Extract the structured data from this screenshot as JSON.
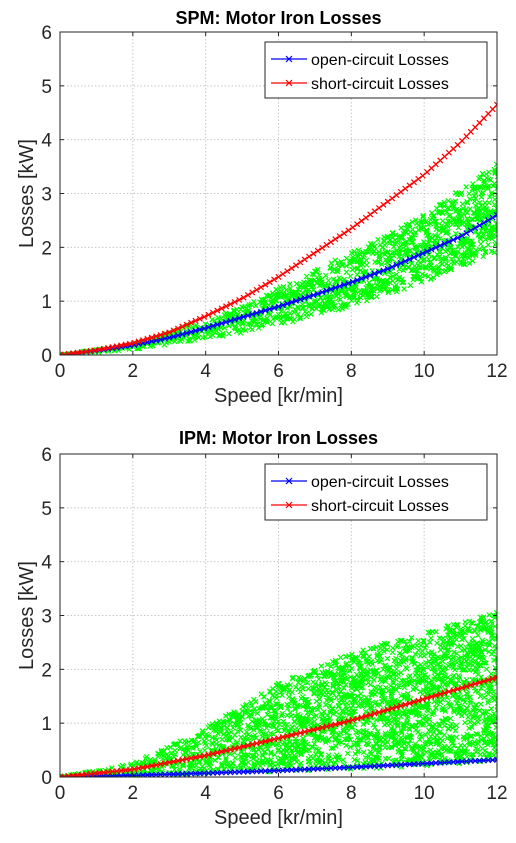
{
  "chart_data": [
    {
      "type": "scatter",
      "title": "SPM: Motor Iron Losses",
      "xlabel": "Speed [kr/min]",
      "ylabel": "Losses [kW]",
      "xlim": [
        0,
        12
      ],
      "ylim": [
        0,
        6
      ],
      "xticks": [
        "0",
        "2",
        "4",
        "6",
        "8",
        "10",
        "12"
      ],
      "yticks": [
        "0",
        "1",
        "2",
        "3",
        "4",
        "5",
        "6"
      ],
      "grid": true,
      "legend_position": "top-right",
      "legend": [
        "open-circuit Losses",
        "short-circuit Losses"
      ],
      "series": [
        {
          "name": "open-circuit Losses",
          "color": "#0000ff",
          "marker": "x",
          "x": [
            0,
            1,
            2,
            3,
            4,
            5,
            6,
            7,
            8,
            9,
            10,
            11,
            12
          ],
          "y": [
            0,
            0.08,
            0.18,
            0.32,
            0.5,
            0.7,
            0.9,
            1.12,
            1.35,
            1.6,
            1.9,
            2.2,
            2.6
          ]
        },
        {
          "name": "short-circuit Losses",
          "color": "#ff0000",
          "marker": "x",
          "x": [
            0,
            1,
            2,
            3,
            4,
            5,
            6,
            7,
            8,
            9,
            10,
            11,
            12
          ],
          "y": [
            0,
            0.09,
            0.22,
            0.42,
            0.72,
            1.05,
            1.45,
            1.9,
            2.35,
            2.85,
            3.35,
            3.95,
            4.65
          ]
        },
        {
          "color": "#00ff00",
          "marker": "x",
          "style": "cloud",
          "x": [
            0,
            2,
            3.5,
            4,
            5,
            6,
            8,
            10,
            12
          ],
          "y_low": [
            0,
            0.1,
            0.25,
            0.3,
            0.4,
            0.55,
            0.9,
            1.35,
            1.9
          ],
          "y_high": [
            0,
            0.2,
            0.55,
            0.62,
            0.9,
            1.25,
            1.9,
            2.6,
            3.55
          ]
        }
      ]
    },
    {
      "type": "scatter",
      "title": "IPM: Motor Iron Losses",
      "xlabel": "Speed [kr/min]",
      "ylabel": "Losses [kW]",
      "xlim": [
        0,
        12
      ],
      "ylim": [
        0,
        6
      ],
      "xticks": [
        "0",
        "2",
        "4",
        "6",
        "8",
        "10",
        "12"
      ],
      "yticks": [
        "0",
        "1",
        "2",
        "3",
        "4",
        "5",
        "6"
      ],
      "grid": true,
      "legend_position": "top-right",
      "legend": [
        "open-circuit Losses",
        "short-circuit Losses"
      ],
      "series": [
        {
          "name": "open-circuit Losses",
          "color": "#0000ff",
          "marker": "x",
          "x": [
            0,
            2,
            4,
            6,
            8,
            10,
            12
          ],
          "y": [
            0,
            0.03,
            0.07,
            0.12,
            0.18,
            0.25,
            0.32
          ]
        },
        {
          "name": "short-circuit Losses",
          "color": "#ff0000",
          "marker": "x",
          "x": [
            0,
            2,
            4,
            6,
            8,
            10,
            12
          ],
          "y": [
            0,
            0.14,
            0.4,
            0.72,
            1.05,
            1.45,
            1.85
          ]
        },
        {
          "color": "#00ff00",
          "marker": "x",
          "style": "cloud",
          "x": [
            0,
            2,
            4,
            6,
            8,
            10,
            12
          ],
          "y_low": [
            0,
            0.02,
            0.06,
            0.1,
            0.15,
            0.2,
            0.3
          ],
          "y_high": [
            0,
            0.25,
            0.9,
            1.75,
            2.3,
            2.7,
            3.05
          ]
        }
      ]
    }
  ]
}
